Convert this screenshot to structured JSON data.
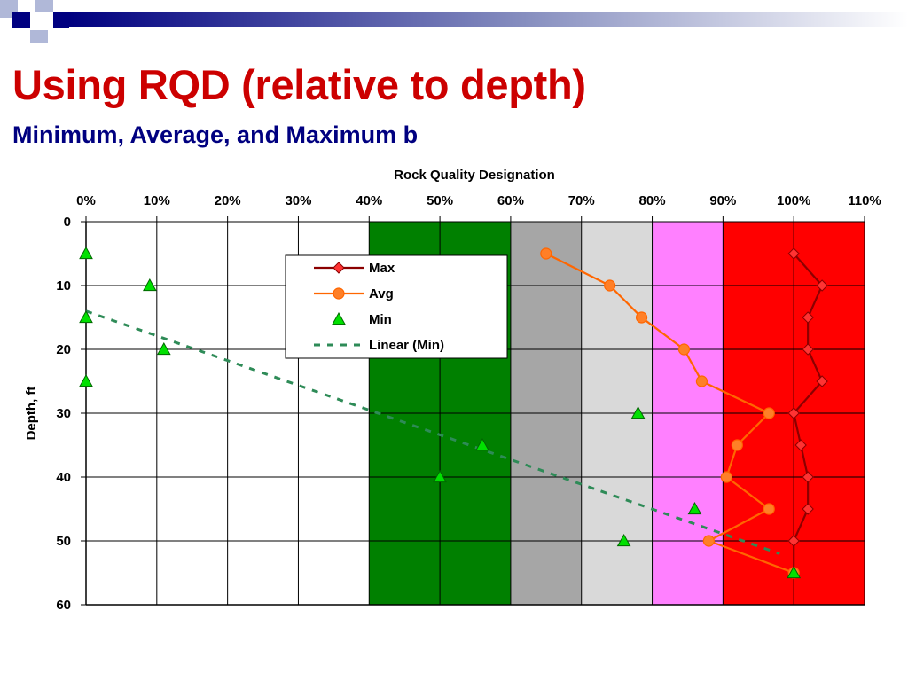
{
  "slide": {
    "title": "Using RQD (relative to depth)",
    "subtitle": "Minimum, Average, and Maximum b"
  },
  "colors": {
    "title": "#cc0000",
    "subtitle": "#000080",
    "deco_dark": "#000080",
    "deco_light": "#b0b8d8"
  },
  "chart_data": {
    "type": "line",
    "title": "Rock Quality Designation",
    "xlabel": "",
    "ylabel": "Depth, ft",
    "x_axis_position": "top",
    "y_axis_reversed": true,
    "xlim": [
      0,
      110
    ],
    "ylim": [
      0,
      60
    ],
    "x_ticks": [
      "0%",
      "10%",
      "20%",
      "30%",
      "40%",
      "50%",
      "60%",
      "70%",
      "80%",
      "90%",
      "100%",
      "110%"
    ],
    "y_ticks": [
      "0",
      "10",
      "20",
      "30",
      "40",
      "50",
      "60"
    ],
    "grid": true,
    "legend_position": "top-center",
    "bands": [
      {
        "from": 40,
        "to": 60,
        "color": "#008000"
      },
      {
        "from": 60,
        "to": 70,
        "color": "#a6a6a6"
      },
      {
        "from": 70,
        "to": 80,
        "color": "#d9d9d9"
      },
      {
        "from": 80,
        "to": 90,
        "color": "#ff80ff"
      },
      {
        "from": 90,
        "to": 110,
        "color": "#ff0000"
      }
    ],
    "series": [
      {
        "name": "Max",
        "color": "#8b0000",
        "marker": "diamond",
        "marker_fill": "#ff3333",
        "points": [
          [
            100,
            5
          ],
          [
            104,
            10
          ],
          [
            102,
            15
          ],
          [
            102,
            20
          ],
          [
            104,
            25
          ],
          [
            100,
            30
          ],
          [
            101,
            35
          ],
          [
            102,
            40
          ],
          [
            102,
            45
          ],
          [
            100,
            50
          ],
          [
            100,
            55
          ]
        ]
      },
      {
        "name": "Avg",
        "color": "#ff6600",
        "marker": "circle",
        "marker_fill": "#ff7f27",
        "points": [
          [
            65,
            5
          ],
          [
            74,
            10
          ],
          [
            78.5,
            15
          ],
          [
            84.5,
            20
          ],
          [
            87,
            25
          ],
          [
            96.5,
            30
          ],
          [
            92,
            35
          ],
          [
            90.5,
            40
          ],
          [
            96.5,
            45
          ],
          [
            88,
            50
          ],
          [
            100,
            55
          ]
        ]
      },
      {
        "name": "Min",
        "color": "#00cc00",
        "marker": "triangle",
        "marker_fill": "#00e000",
        "points": [
          [
            0,
            5
          ],
          [
            9,
            10
          ],
          [
            0,
            15
          ],
          [
            11,
            20
          ],
          [
            0,
            25
          ],
          [
            78,
            30
          ],
          [
            56,
            35
          ],
          [
            50,
            40
          ],
          [
            86,
            45
          ],
          [
            76,
            50
          ],
          [
            100,
            55
          ]
        ]
      },
      {
        "name": "Linear (Min)",
        "color": "#2e8b57",
        "dashed": true,
        "points": [
          [
            0,
            14
          ],
          [
            98,
            52
          ]
        ]
      }
    ]
  }
}
